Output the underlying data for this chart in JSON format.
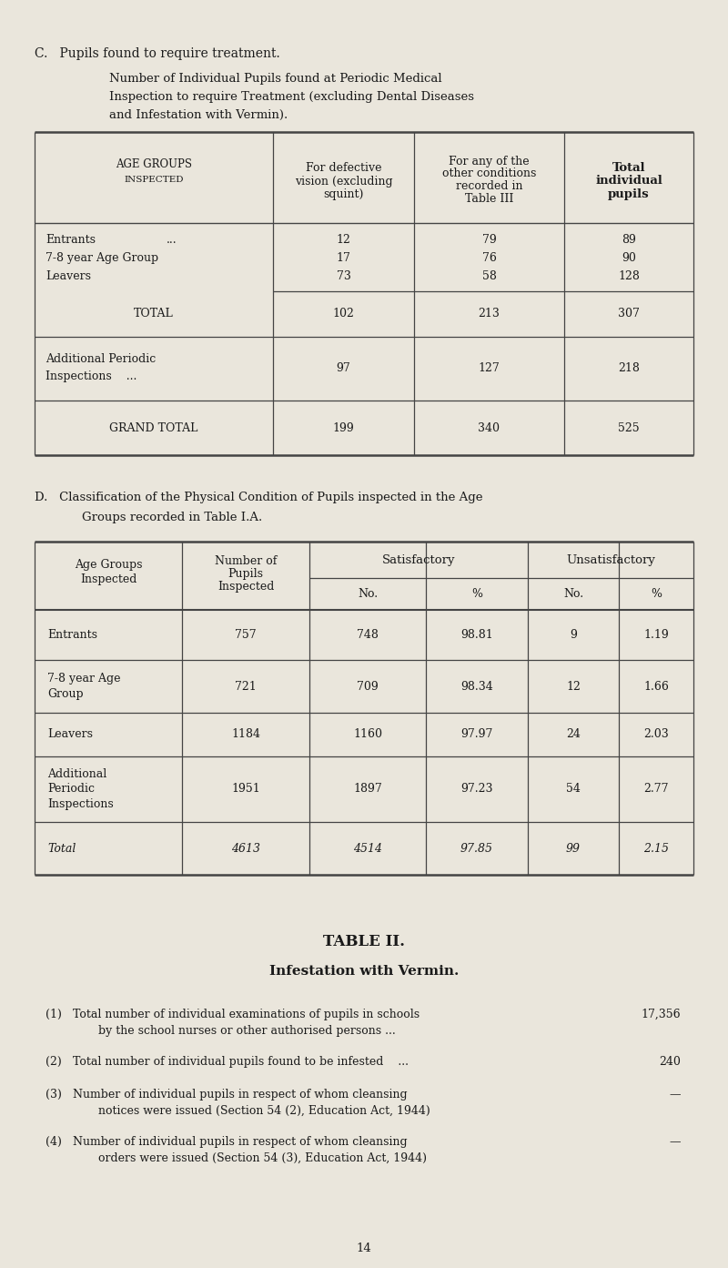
{
  "bg_color": "#eae6dc",
  "text_color": "#1a1a1a",
  "section_c_title": "C.   Pupils found to require treatment.",
  "section_c_subtitle_line1": "Number of Individual Pupils found at Periodic Medical",
  "section_c_subtitle_line2": "Inspection to require Treatment (excluding Dental Diseases",
  "section_c_subtitle_line3": "and Infestation with Vermin).",
  "t1_col_headers": [
    [
      "AGE GROUPS",
      "INSPECTED"
    ],
    [
      "For defective",
      "vision (excluding",
      "squint)"
    ],
    [
      "For any of the",
      "other conditions",
      "recorded in",
      "Table III"
    ],
    [
      "Total",
      "individual",
      "pupils"
    ]
  ],
  "t1_data": {
    "entrants_row": [
      "Entrants",
      "...",
      "12",
      "79",
      "89"
    ],
    "age78_row": [
      "7-8 year Age Group",
      "",
      "17",
      "76",
      "90"
    ],
    "leavers_row": [
      "Leavers",
      "",
      "73",
      "58",
      "128"
    ],
    "total_row": [
      "TOTAL",
      "102",
      "213",
      "307"
    ],
    "addl_row": [
      "Additional Periodic",
      "Inspections    ...",
      "97",
      "127",
      "218"
    ],
    "grand_row": [
      "GRAND TOTAL",
      "199",
      "340",
      "525"
    ]
  },
  "section_d_line1": "D.   Classification of the Physical Condition of Pupils inspected in the Age",
  "section_d_line2": "Groups recorded in Table I.A.",
  "t2_col_headers_top": [
    "Age Groups\nInspected",
    "Number of\nPupils\nInspected",
    "Satisfactory",
    "Unsatisfactory"
  ],
  "t2_col_headers_bot": [
    "No.",
    "%",
    "No.",
    "%"
  ],
  "t2_data": [
    [
      "Entrants",
      "757",
      "748",
      "98.81",
      "9",
      "1.19"
    ],
    [
      "7-8 year Age\nGroup",
      "721",
      "709",
      "98.34",
      "12",
      "1.66"
    ],
    [
      "Leavers",
      "1184",
      "1160",
      "97.97",
      "24",
      "2.03"
    ],
    [
      "Additional\nPeriodic\nInspections",
      "1951",
      "1897",
      "97.23",
      "54",
      "2.77"
    ],
    [
      "Total",
      "4613",
      "4514",
      "97.85",
      "99",
      "2.15"
    ]
  ],
  "table2_title": "TABLE II.",
  "table2_subtitle": "Infestation with Vermin.",
  "vermin": [
    {
      "n": "(1)",
      "t1": "Total number of individual examinations of pupils in schools",
      "t2": "by the school nurses or other authorised persons ...",
      "v": "17,356"
    },
    {
      "n": "(2)",
      "t1": "Total number of individual pupils found to be infested    ...",
      "t2": "",
      "v": "240"
    },
    {
      "n": "(3)",
      "t1": "Number of individual pupils in respect of whom cleansing",
      "t2": "notices were issued (Section 54 (2), Education Act, 1944)",
      "v": "—"
    },
    {
      "n": "(4)",
      "t1": "Number of individual pupils in respect of whom cleansing",
      "t2": "orders were issued (Section 54 (3), Education Act, 1944)",
      "v": "—"
    }
  ],
  "page_number": "14"
}
